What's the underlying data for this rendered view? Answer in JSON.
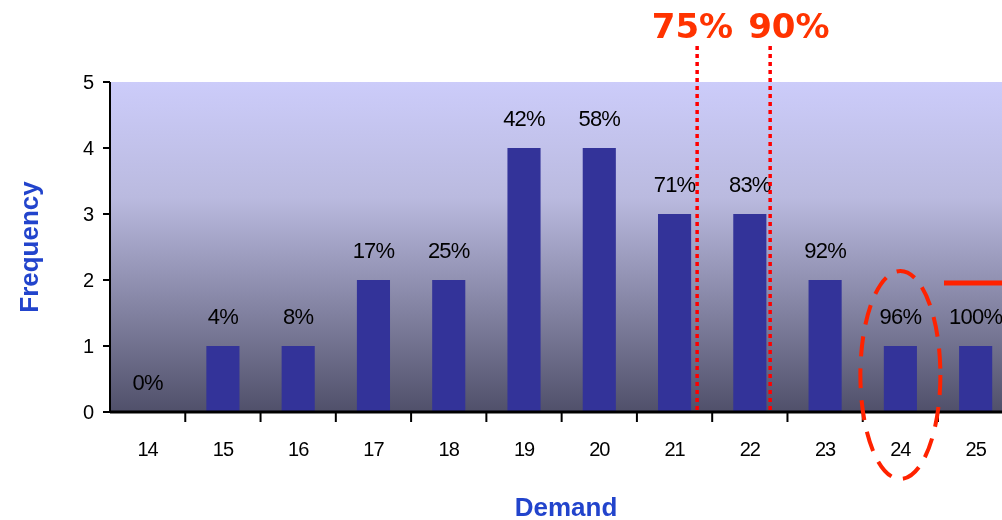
{
  "chart_data": {
    "type": "bar",
    "xlabel": "Demand",
    "ylabel": "Frequency",
    "x": [
      14,
      15,
      16,
      17,
      18,
      19,
      20,
      21,
      22,
      23,
      24,
      25
    ],
    "values": [
      0,
      1,
      1,
      2,
      2,
      4,
      4,
      3,
      3,
      2,
      1,
      1
    ],
    "annotations": [
      {
        "text": "0%",
        "x": 14,
        "y": 0
      },
      {
        "text": "4%",
        "x": 15,
        "y": 1
      },
      {
        "text": "8%",
        "x": 16,
        "y": 1
      },
      {
        "text": "17%",
        "x": 17,
        "y": 2
      },
      {
        "text": "25%",
        "x": 18,
        "y": 2
      },
      {
        "text": "42%",
        "x": 19,
        "y": 4
      },
      {
        "text": "58%",
        "x": 20,
        "y": 4
      },
      {
        "text": "71%",
        "x": 21,
        "y": 3
      },
      {
        "text": "83%",
        "x": 22,
        "y": 3
      },
      {
        "text": "92%",
        "x": 23,
        "y": 2
      },
      {
        "text": "96%",
        "x": 24,
        "y": 1
      },
      {
        "text": "100%",
        "x": 25,
        "y": 1
      },
      {
        "text": "75%",
        "x": 21.3,
        "y": 5
      },
      {
        "text": "90%",
        "x": 22.27,
        "y": 5
      }
    ],
    "color": "#333399",
    "xlim": [
      13.5,
      25.35
    ],
    "xticks": [
      14,
      15,
      16,
      17,
      18,
      19,
      20,
      21,
      22,
      23,
      24,
      25,
      {
        "value": 14.5,
        "label": null
      },
      {
        "value": 15.5,
        "label": null
      },
      {
        "value": 16.5,
        "label": null
      },
      {
        "value": 17.5,
        "label": null
      },
      {
        "value": 18.5,
        "label": null
      },
      {
        "value": 19.5,
        "label": null
      },
      {
        "value": 20.5,
        "label": null
      },
      {
        "value": 21.5,
        "label": null
      },
      {
        "value": 22.5,
        "label": null
      },
      {
        "value": 23.5,
        "label": null
      },
      {
        "value": 24.5,
        "label": null
      }
    ],
    "ylim": [
      0,
      5
    ],
    "yticks": [
      0,
      1,
      2,
      3,
      4,
      5
    ],
    "ref_lines": [
      {
        "axis": "x",
        "value": 21.3,
        "color": "#ff0000",
        "line_style": "dotted"
      },
      {
        "axis": "x",
        "value": 22.27,
        "color": "#ff0000",
        "line_style": "dotted"
      }
    ]
  }
}
